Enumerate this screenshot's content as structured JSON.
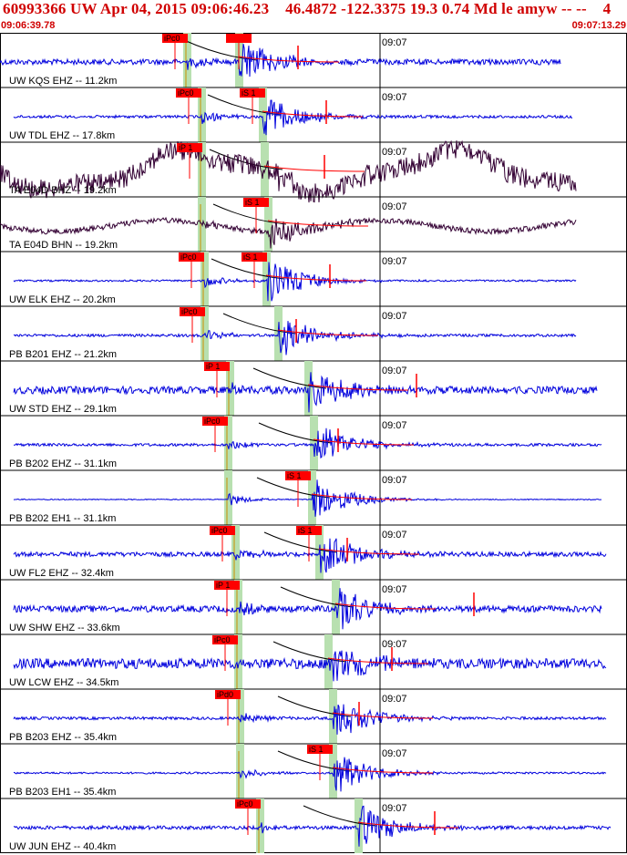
{
  "header": {
    "title": "60993366 UW Apr 04, 2015 09:06:46.23    46.4872 -122.3375 19.3 0.74 Md le amyw -- --    4",
    "start_time": "09:06:39.78",
    "end_time": "09:07:13.29"
  },
  "colors": {
    "header_text": "#d00000",
    "trace_short_period": "#0000dd",
    "trace_broadband": "#330033",
    "pick_box": "#ff0000",
    "pick_band": "#b8e0b0",
    "model_curve": "#000000",
    "coda_fit": "#ff0000"
  },
  "time_marker_label": "09:07",
  "traces": [
    {
      "label": "UW KQS EHZ -- 11.2km",
      "color": "blue",
      "picks": [
        {
          "text": "iPc0",
          "x": 192
        },
        {
          "text": "",
          "x": 262
        }
      ],
      "s_x": 262,
      "p_x": 205,
      "end": 615,
      "amp": 6,
      "burst": 25,
      "bg": "flat",
      "minor": [
        {
          "x": 327
        }
      ]
    },
    {
      "label": "UW TDL EHZ -- 17.8km",
      "color": "blue",
      "picks": [
        {
          "text": "iPc0",
          "x": 207
        },
        {
          "text": "iS 1",
          "x": 277
        }
      ],
      "s_x": 288,
      "p_x": 221,
      "end": 628,
      "amp": 3,
      "burst": 25,
      "bg": "flat",
      "minor": [
        {
          "x": 358
        }
      ]
    },
    {
      "label": "TA E04D BHZ -- 19.2km",
      "color": "dark",
      "picks": [
        {
          "text": "iP 1",
          "x": 208
        }
      ],
      "s_x": 290,
      "p_x": 221,
      "end": 632,
      "amp": 22,
      "burst": 10,
      "bg": "wave",
      "minor": [
        {
          "x": 356
        }
      ]
    },
    {
      "label": "TA E04D BHN -- 19.2km",
      "color": "dark",
      "picks": [
        {
          "text": "iS 1",
          "x": 281
        }
      ],
      "s_x": 294,
      "p_x": 221,
      "end": 632,
      "amp": 6,
      "burst": 18,
      "bg": "wave2",
      "minor": []
    },
    {
      "label": "UW ELK EHZ -- 20.2km",
      "color": "blue",
      "picks": [
        {
          "text": "iPc0",
          "x": 210
        },
        {
          "text": "iS 1",
          "x": 279
        }
      ],
      "s_x": 292,
      "p_x": 224,
      "end": 632,
      "amp": 2,
      "burst": 25,
      "bg": "flat",
      "minor": [
        {
          "x": 362
        }
      ]
    },
    {
      "label": "PB B201 EHZ -- 21.2km",
      "color": "blue",
      "picks": [
        {
          "text": "iPc0",
          "x": 211
        }
      ],
      "s_x": 305,
      "p_x": 224,
      "end": 632,
      "amp": 3,
      "burst": 25,
      "bg": "flat",
      "minor": [
        {
          "x": 325
        }
      ]
    },
    {
      "label": "UW STD EHZ -- 29.1km",
      "color": "blue",
      "picks": [
        {
          "text": "iP 1",
          "x": 238
        }
      ],
      "s_x": 338,
      "p_x": 252,
      "end": 655,
      "amp": 8,
      "burst": 25,
      "bg": "flat",
      "minor": [
        {
          "x": 457
        }
      ]
    },
    {
      "label": "PB B202 EHZ -- 31.1km",
      "color": "blue",
      "picks": [
        {
          "text": "iPc0",
          "x": 236
        }
      ],
      "s_x": 344,
      "p_x": 250,
      "end": 660,
      "amp": 3,
      "burst": 25,
      "bg": "flat",
      "minor": [
        {
          "x": 371
        }
      ]
    },
    {
      "label": "PB B202 EH1 -- 31.1km",
      "color": "blue",
      "picks": [
        {
          "text": "iS 1",
          "x": 327
        }
      ],
      "s_x": 342,
      "p_x": 250,
      "end": 660,
      "amp": 1,
      "burst": 25,
      "bg": "flat",
      "minor": []
    },
    {
      "label": "UW FL2 EHZ -- 32.4km",
      "color": "blue",
      "picks": [
        {
          "text": "iPc0",
          "x": 244
        },
        {
          "text": "iS 1",
          "x": 339
        }
      ],
      "s_x": 350,
      "p_x": 258,
      "end": 665,
      "amp": 5,
      "burst": 25,
      "bg": "flat",
      "minor": [
        {
          "x": 381
        }
      ]
    },
    {
      "label": "UW SHW EHZ -- 33.6km",
      "color": "blue",
      "picks": [
        {
          "text": "iP 1",
          "x": 249
        }
      ],
      "s_x": 368,
      "p_x": 261,
      "end": 660,
      "amp": 7,
      "burst": 25,
      "bg": "flat",
      "minor": [
        {
          "x": 520
        }
      ]
    },
    {
      "label": "UW LCW EHZ -- 34.5km",
      "color": "blue",
      "picks": [
        {
          "text": "iPc0",
          "x": 247
        }
      ],
      "s_x": 360,
      "p_x": 261,
      "end": 665,
      "amp": 11,
      "burst": 25,
      "bg": "flat",
      "minor": [
        {
          "x": 430
        }
      ]
    },
    {
      "label": "PB B203 EHZ -- 35.4km",
      "color": "blue",
      "picks": [
        {
          "text": "iPd0",
          "x": 250
        }
      ],
      "s_x": 365,
      "p_x": 263,
      "end": 665,
      "amp": 3,
      "burst": 25,
      "bg": "flat",
      "minor": [
        {
          "x": 394
        }
      ]
    },
    {
      "label": "PB B203 EH1 -- 35.4km",
      "color": "blue",
      "picks": [
        {
          "text": "iS 1",
          "x": 351
        }
      ],
      "s_x": 365,
      "p_x": 263,
      "end": 665,
      "amp": 2,
      "burst": 25,
      "bg": "flat",
      "minor": []
    },
    {
      "label": "UW JUN EHZ -- 40.4km",
      "color": "blue",
      "picks": [
        {
          "text": "iPc0",
          "x": 272
        }
      ],
      "s_x": 393,
      "p_x": 285,
      "end": 670,
      "amp": 4,
      "burst": 25,
      "bg": "flat",
      "minor": [
        {
          "x": 477
        }
      ]
    }
  ]
}
